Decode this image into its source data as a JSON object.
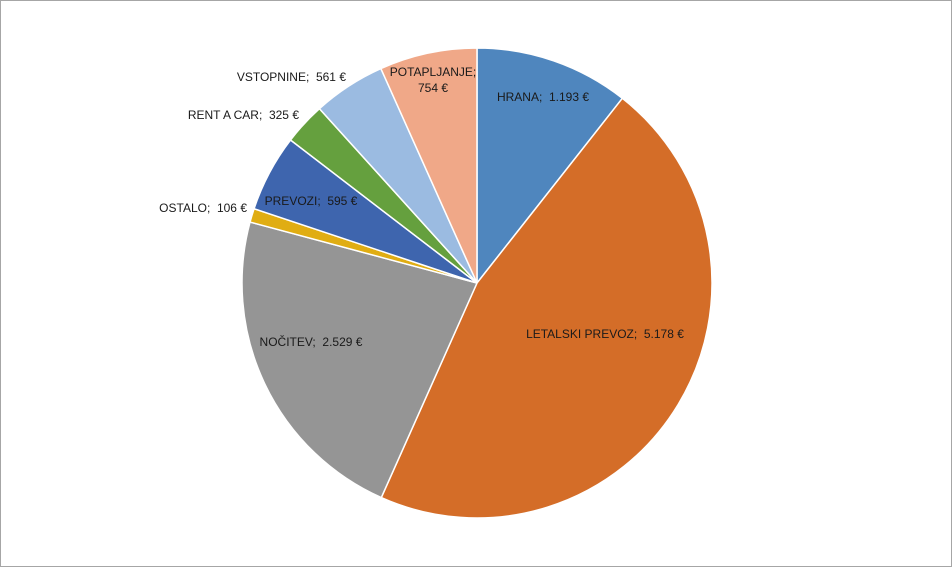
{
  "chart_data": {
    "type": "pie",
    "title": "",
    "slices": [
      {
        "name": "HRANA",
        "value": 1193,
        "label": "HRANA;  1.193 €",
        "color": "#4f86be"
      },
      {
        "name": "LETALSKI PREVOZ",
        "value": 5178,
        "label": "LETALSKI PREVOZ;  5.178 €",
        "color": "#d46d28"
      },
      {
        "name": "NOČITEV",
        "value": 2529,
        "label": "NOČITEV;  2.529 €",
        "color": "#959595"
      },
      {
        "name": "OSTALO",
        "value": 106,
        "label": "OSTALO;  106 €",
        "color": "#e0ad13"
      },
      {
        "name": "PREVOZI",
        "value": 595,
        "label": "PREVOZI;  595 €",
        "color": "#3e65ae"
      },
      {
        "name": "RENT A CAR",
        "value": 325,
        "label": "RENT A CAR;  325 €",
        "color": "#65a03e"
      },
      {
        "name": "VSTOPNINE",
        "value": 561,
        "label": "VSTOPNINE;  561 €",
        "color": "#9bbbe1"
      },
      {
        "name": "POTAPLJANJE",
        "value": 754,
        "label": "POTAPLJANJE;",
        "label_line2": "754 €",
        "color": "#f0a888"
      }
    ],
    "currency": "€",
    "legend": "none",
    "data_labels": "category; value"
  }
}
